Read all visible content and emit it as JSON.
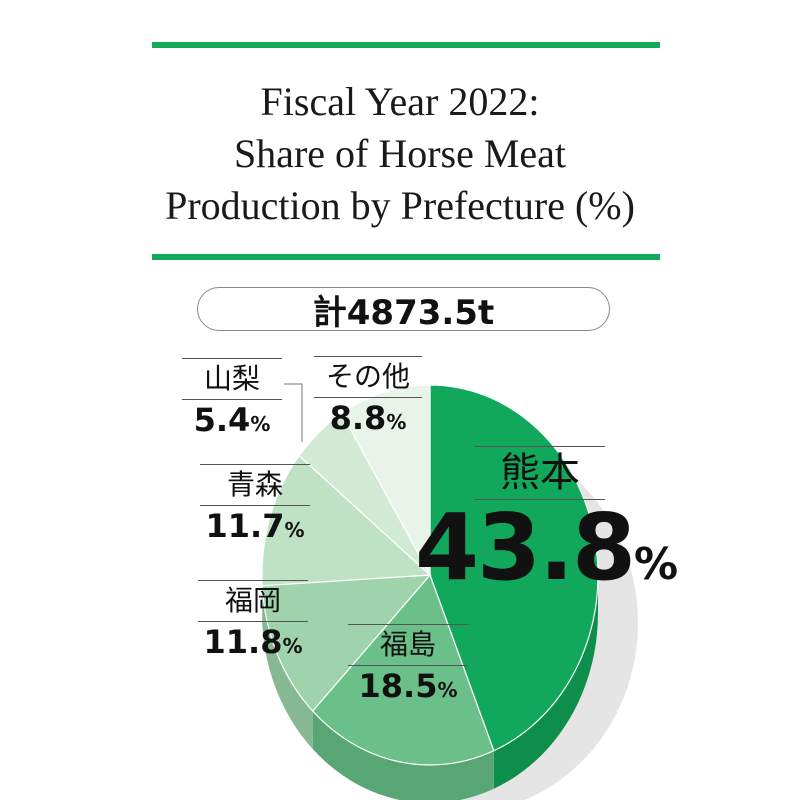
{
  "title_lines": [
    "Fiscal Year 2022:",
    "Share of Horse Meat",
    "Production by Prefecture (%)"
  ],
  "total_label": "計4873.5t",
  "colors": {
    "accent": "#13a85a",
    "rule": "#13a85a"
  },
  "chart_data": {
    "type": "pie",
    "title": "Fiscal Year 2022: Share of Horse Meat Production by Prefecture (%)",
    "total": "計4873.5t",
    "unit": "%",
    "slices": [
      {
        "label": "熊本",
        "value": 43.8,
        "color": "#12a85b",
        "side": "#0e8e4b"
      },
      {
        "label": "福島",
        "value": 18.5,
        "color": "#6bc08a",
        "side": "#58a674"
      },
      {
        "label": "福岡",
        "value": 11.8,
        "color": "#9fd3ab",
        "side": "#86b892"
      },
      {
        "label": "青森",
        "value": 11.7,
        "color": "#bfe2c5",
        "side": "#a3c7aa"
      },
      {
        "label": "山梨",
        "value": 5.4,
        "color": "#d2ead4",
        "side": "#b4cfb7"
      },
      {
        "label": "その他",
        "value": 8.8,
        "color": "#e8f4ea",
        "side": "#c9dccc"
      }
    ]
  }
}
